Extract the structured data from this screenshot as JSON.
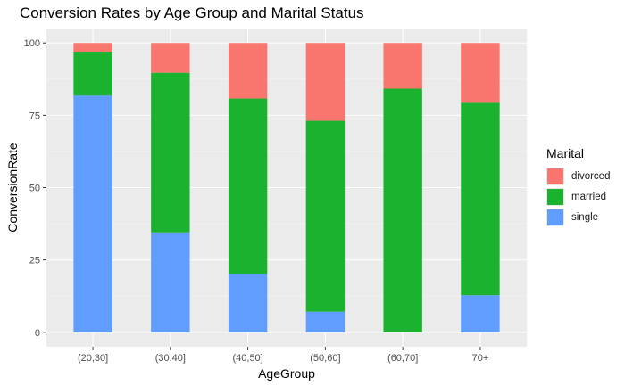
{
  "chart_data": {
    "type": "bar",
    "stacked": true,
    "title": "Conversion Rates by Age Group and Marital Status",
    "xlabel": "AgeGroup",
    "ylabel": "ConversionRate",
    "ylim": [
      0,
      100
    ],
    "yticks": [
      0,
      25,
      50,
      75,
      100
    ],
    "grid": true,
    "legend_position": "right",
    "legend_title": "Marital",
    "categories": [
      "(20,30]",
      "(30,40]",
      "(40,50]",
      "(50,60]",
      "(60,70]",
      "70+"
    ],
    "series": [
      {
        "name": "single",
        "color": "#619cff",
        "values": [
          81.8,
          34.5,
          20.0,
          7.1,
          0.0,
          12.8
        ]
      },
      {
        "name": "married",
        "color": "#1ab22f",
        "values": [
          15.2,
          55.2,
          60.8,
          66.0,
          84.2,
          66.5
        ]
      },
      {
        "name": "divorced",
        "color": "#f8766d",
        "values": [
          3.0,
          10.3,
          19.2,
          26.9,
          15.8,
          20.7
        ]
      }
    ],
    "legend_order": [
      "divorced",
      "married",
      "single"
    ]
  }
}
